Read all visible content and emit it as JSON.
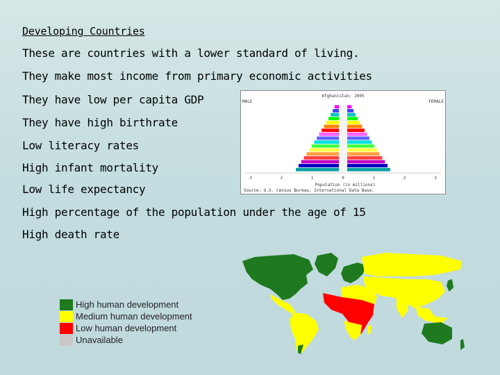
{
  "title": "Developing Countries",
  "bullets": [
    "These are countries with a lower standard of living.",
    "They make most income from primary economic activities",
    "They have low per capita GDP",
    "They have high birthrate",
    "Low literacy rates",
    "High infant mortality",
    "Low life expectancy",
    "High percentage of the population under the age of 15",
    "High death rate"
  ],
  "pyramid": {
    "title": "Afghanistan: 2005",
    "left_label": "MALE",
    "right_label": "FEMALE",
    "x_caption": "Population (in millions)",
    "source": "Source: U.S. Census Bureau, International Data Base.",
    "ticks": [
      "3",
      "2",
      "1",
      "0",
      "1",
      "2",
      "3"
    ],
    "colors": [
      "#ff00ff",
      "#4040ff",
      "#00c0c0",
      "#00ff00",
      "#ffff00",
      "#ff8000",
      "#ff0000",
      "#ff60ff",
      "#6060ff",
      "#00e0e0",
      "#40ff40",
      "#ffff40",
      "#ffa040",
      "#ff4040",
      "#c000c0",
      "#0000c0",
      "#00a0a0"
    ]
  },
  "legend": {
    "items": [
      {
        "label": "High human development",
        "color": "#1f7a1f"
      },
      {
        "label": "Medium human development",
        "color": "#ffff00"
      },
      {
        "label": "Low human development",
        "color": "#ff0000"
      },
      {
        "label": "Unavailable",
        "color": "#c8c8c8"
      }
    ]
  }
}
